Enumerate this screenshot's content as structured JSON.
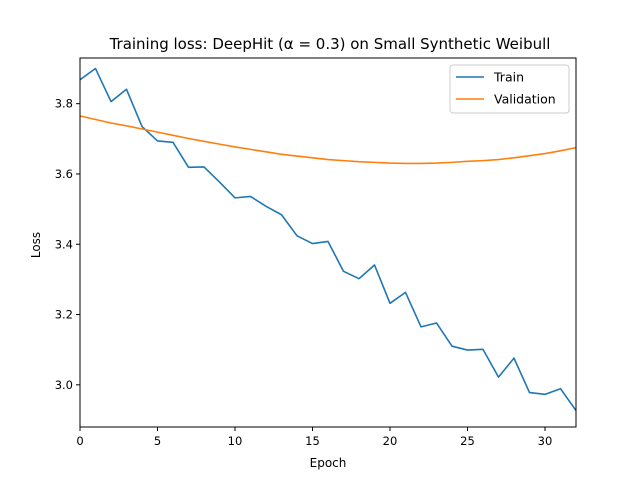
{
  "chart_data": {
    "type": "line",
    "title": "Training loss: DeepHit (α = 0.3) on Small Synthetic Weibull",
    "xlabel": "Epoch",
    "ylabel": "Loss",
    "xlim": [
      0,
      32
    ],
    "ylim": [
      2.88,
      3.93
    ],
    "x_ticks": [
      0,
      5,
      10,
      15,
      20,
      25,
      30
    ],
    "y_ticks": [
      3.0,
      3.2,
      3.4,
      3.6,
      3.8
    ],
    "y_tick_labels": [
      "3.0",
      "3.2",
      "3.4",
      "3.6",
      "3.8"
    ],
    "legend_position": "top-right",
    "grid": false,
    "x": [
      0,
      1,
      2,
      3,
      4,
      5,
      6,
      7,
      8,
      9,
      10,
      11,
      12,
      13,
      14,
      15,
      16,
      17,
      18,
      19,
      20,
      21,
      22,
      23,
      24,
      25,
      26,
      27,
      28,
      29,
      30,
      31,
      32
    ],
    "series": [
      {
        "name": "Train",
        "color": "#1f77b4",
        "values": [
          3.868,
          3.9,
          3.806,
          3.841,
          3.735,
          3.694,
          3.69,
          3.619,
          3.62,
          3.577,
          3.532,
          3.536,
          3.508,
          3.484,
          3.424,
          3.402,
          3.408,
          3.323,
          3.302,
          3.341,
          3.232,
          3.263,
          3.165,
          3.176,
          3.11,
          3.099,
          3.101,
          3.022,
          3.076,
          2.978,
          2.973,
          2.989,
          2.927
        ]
      },
      {
        "name": "Validation",
        "color": "#ff7f0e",
        "values": [
          3.765,
          3.755,
          3.745,
          3.737,
          3.728,
          3.719,
          3.71,
          3.701,
          3.693,
          3.685,
          3.677,
          3.67,
          3.663,
          3.656,
          3.651,
          3.646,
          3.641,
          3.638,
          3.635,
          3.633,
          3.631,
          3.63,
          3.63,
          3.631,
          3.633,
          3.636,
          3.638,
          3.641,
          3.646,
          3.652,
          3.658,
          3.666,
          3.675
        ]
      }
    ]
  }
}
